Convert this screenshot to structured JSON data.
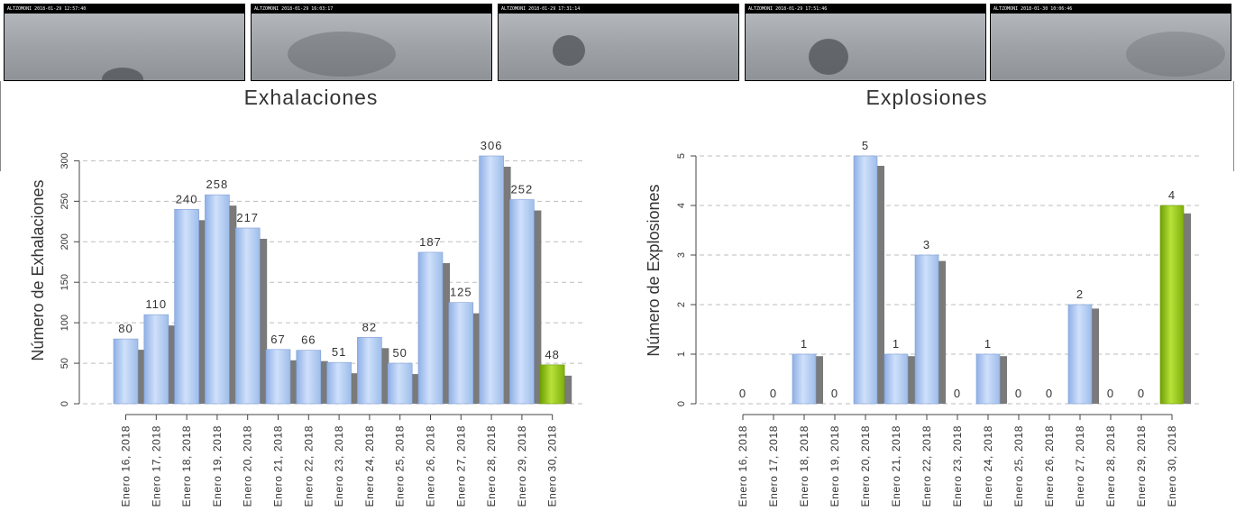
{
  "thumbnails": [
    {
      "caption": "ALTZOMONI 2018-01-29 12:57:40"
    },
    {
      "caption": "ALTZOMONI 2018-01-29 16:03:17"
    },
    {
      "caption": "ALTZOMONI 2018-01-29 17:31:14"
    },
    {
      "caption": "ALTZOMONI 2018-01-29 17:51:46"
    },
    {
      "caption": "ALTZOMONI 2018-01-30 10:06:46"
    }
  ],
  "colors": {
    "bar_blue": "#a8c4ee",
    "bar_blue_dark": "#7f9fd6",
    "bar_green": "#9ccb1a",
    "bar_green_dark": "#6a9a08",
    "shadow": "#7a7a7a",
    "grid": "#bdbdbd"
  },
  "chart_data": [
    {
      "type": "bar",
      "title": "Exhalaciones",
      "ylabel": "Número de Exhalaciones",
      "xlabel": "",
      "categories": [
        "Enero 16, 2018",
        "Enero 17, 2018",
        "Enero 18, 2018",
        "Enero 19, 2018",
        "Enero 20, 2018",
        "Enero 21, 2018",
        "Enero 22, 2018",
        "Enero 23, 2018",
        "Enero 24, 2018",
        "Enero 25, 2018",
        "Enero 26, 2018",
        "Enero 27, 2018",
        "Enero 28, 2018",
        "Enero 29, 2018",
        "Enero 30, 2018"
      ],
      "values": [
        80,
        110,
        240,
        258,
        217,
        67,
        66,
        51,
        82,
        50,
        187,
        125,
        306,
        252,
        48
      ],
      "ylim": [
        0,
        306
      ],
      "yticks": [
        0,
        50,
        100,
        150,
        200,
        250,
        300
      ],
      "grid": true,
      "highlight_last": true
    },
    {
      "type": "bar",
      "title": "Explosiones",
      "ylabel": "Número de Explosiones",
      "xlabel": "",
      "categories": [
        "Enero 16, 2018",
        "Enero 17, 2018",
        "Enero 18, 2018",
        "Enero 19, 2018",
        "Enero 20, 2018",
        "Enero 21, 2018",
        "Enero 22, 2018",
        "Enero 23, 2018",
        "Enero 24, 2018",
        "Enero 25, 2018",
        "Enero 26, 2018",
        "Enero 27, 2018",
        "Enero 28, 2018",
        "Enero 29, 2018",
        "Enero 30, 2018"
      ],
      "values": [
        0,
        0,
        1,
        0,
        5,
        1,
        3,
        0,
        1,
        0,
        0,
        2,
        0,
        0,
        4
      ],
      "ylim": [
        0,
        5
      ],
      "yticks": [
        0,
        1,
        2,
        3,
        4,
        5
      ],
      "grid": true,
      "highlight_last": true
    }
  ]
}
